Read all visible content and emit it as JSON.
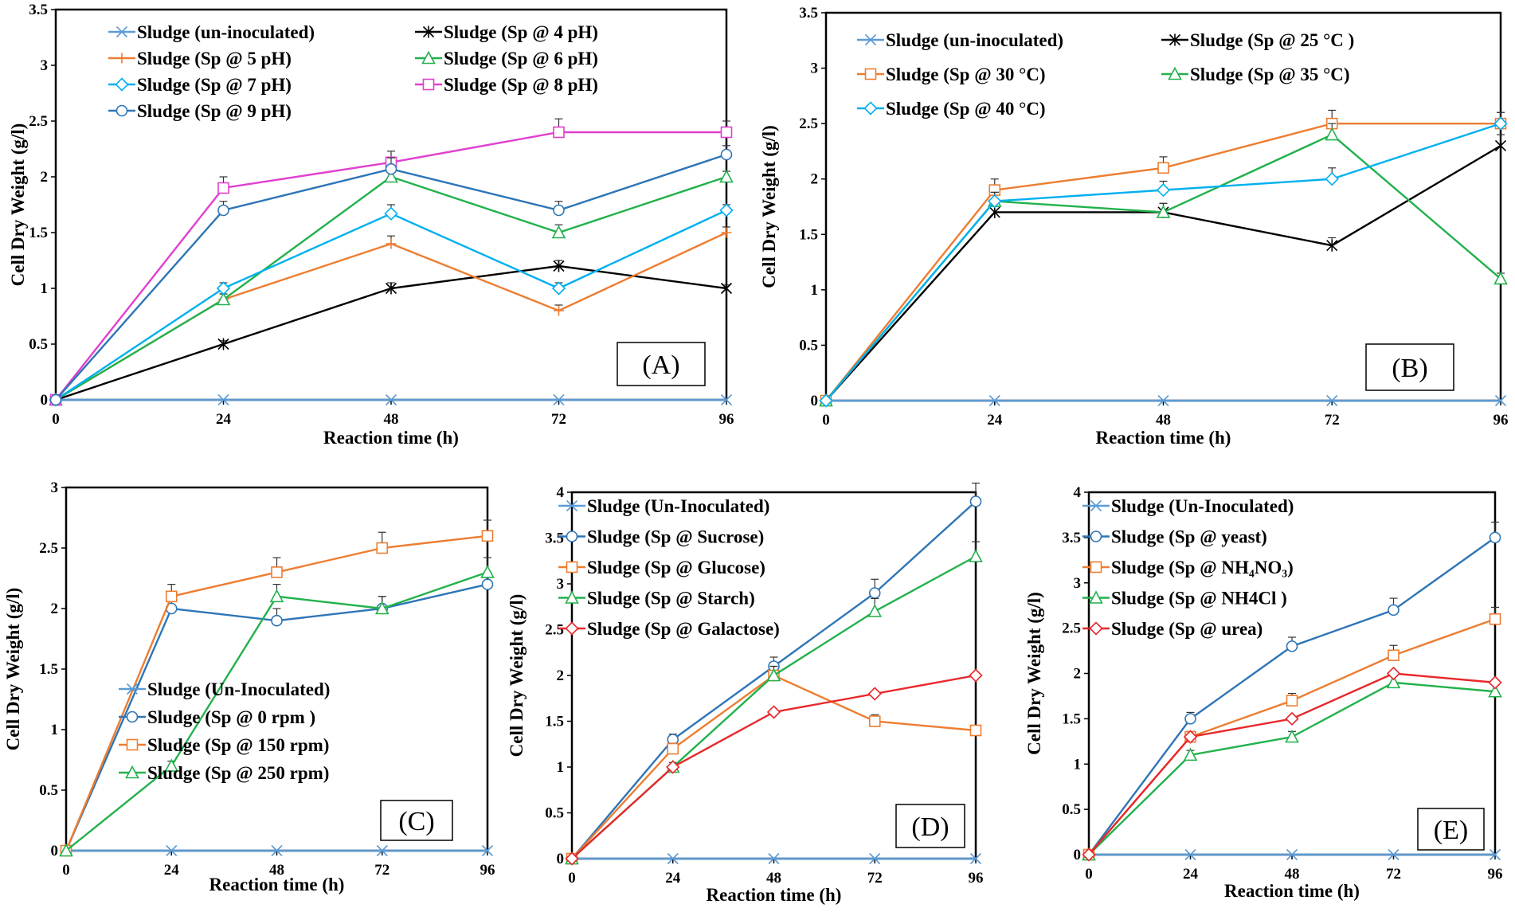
{
  "x_ticks": [
    0,
    24,
    48,
    72,
    96
  ],
  "xlabel": "Reaction time (h)",
  "ylabel": "Cell Dry Weight (g/l)",
  "chart_data": [
    {
      "id": "A",
      "type": "line",
      "panel_label": "(A)",
      "xlabel": "Reaction time (h)",
      "ylabel": "Cell Dry Weight (g/l)",
      "x": [
        0,
        24,
        48,
        72,
        96
      ],
      "xlim": [
        0,
        96
      ],
      "ylim": [
        0,
        3.5
      ],
      "y_ticks": [
        "0",
        "0.5",
        "1",
        "1.5",
        "2",
        "2.5",
        "3",
        "3.5"
      ],
      "series": [
        {
          "name": "Sludge (un-inoculated)",
          "color": "#5b9bd5",
          "marker": "x",
          "values": [
            0,
            0,
            0,
            0,
            0
          ],
          "errors": [
            0,
            0,
            0,
            0,
            0
          ]
        },
        {
          "name": "Sludge (Sp @ 4 pH)",
          "color": "#000000",
          "marker": "star",
          "values": [
            0,
            0.5,
            1.0,
            1.2,
            1.0
          ],
          "errors": [
            0,
            0.03,
            0.05,
            0.05,
            0.03
          ]
        },
        {
          "name": "Sludge (Sp @ 5 pH)",
          "color": "#ed7d31",
          "marker": "plus",
          "values": [
            0,
            0.9,
            1.4,
            0.8,
            1.5
          ],
          "errors": [
            0,
            0.05,
            0.07,
            0.05,
            0.05
          ]
        },
        {
          "name": "Sludge (Sp @ 6 pH)",
          "color": "#22b14c",
          "marker": "triangle",
          "values": [
            0,
            0.9,
            2.0,
            1.5,
            2.0
          ],
          "errors": [
            0,
            0.05,
            0.08,
            0.07,
            0.05
          ]
        },
        {
          "name": "Sludge (Sp @ 7 pH)",
          "color": "#00b0f0",
          "marker": "diamond",
          "values": [
            0,
            1.0,
            1.67,
            1.0,
            1.7
          ],
          "errors": [
            0,
            0.05,
            0.08,
            0.05,
            0.05
          ]
        },
        {
          "name": "Sludge (Sp @ 8 pH)",
          "color": "#e040d0",
          "marker": "square",
          "values": [
            0,
            1.9,
            2.13,
            2.4,
            2.4
          ],
          "errors": [
            0,
            0.1,
            0.1,
            0.12,
            0.1
          ]
        },
        {
          "name": "Sludge (Sp @ 9 pH)",
          "color": "#2e75b6",
          "marker": "circle",
          "values": [
            0,
            1.7,
            2.07,
            1.7,
            2.2
          ],
          "errors": [
            0,
            0.08,
            0.1,
            0.08,
            0.08
          ]
        }
      ]
    },
    {
      "id": "B",
      "type": "line",
      "panel_label": "(B)",
      "xlabel": "Reaction time (h)",
      "ylabel": "Cell Dry Weight (g/l)",
      "x": [
        0,
        24,
        48,
        72,
        96
      ],
      "xlim": [
        0,
        96
      ],
      "ylim": [
        0,
        3.5
      ],
      "y_ticks": [
        "0",
        "0.5",
        "1",
        "1.5",
        "2",
        "2.5",
        "3",
        "3.5"
      ],
      "series": [
        {
          "name": "Sludge (un-inoculated)",
          "color": "#5b9bd5",
          "marker": "x",
          "values": [
            0,
            0,
            0,
            0,
            0
          ],
          "errors": [
            0,
            0,
            0,
            0,
            0
          ]
        },
        {
          "name": "Sludge (Sp @ 25 °C )",
          "color": "#000000",
          "marker": "star",
          "values": [
            0,
            1.7,
            1.7,
            1.4,
            2.3
          ],
          "errors": [
            0,
            0.08,
            0.08,
            0.07,
            0.1
          ]
        },
        {
          "name": "Sludge (Sp @ 30 °C)",
          "color": "#ed7d31",
          "marker": "square",
          "values": [
            0,
            1.9,
            2.1,
            2.5,
            2.5
          ],
          "errors": [
            0,
            0.1,
            0.1,
            0.12,
            0.1
          ]
        },
        {
          "name": "Sludge (Sp @ 35 °C)",
          "color": "#22b14c",
          "marker": "triangle",
          "values": [
            0,
            1.8,
            1.7,
            2.4,
            1.1
          ],
          "errors": [
            0,
            0.08,
            0.08,
            0.1,
            0.05
          ]
        },
        {
          "name": "Sludge (Sp @ 40 °C)",
          "color": "#00b0f0",
          "marker": "diamond",
          "values": [
            0,
            1.8,
            1.9,
            2.0,
            2.5
          ],
          "errors": [
            0,
            0.08,
            0.08,
            0.1,
            0.1
          ]
        }
      ]
    },
    {
      "id": "C",
      "type": "line",
      "panel_label": "(C)",
      "xlabel": "Reaction time (h)",
      "ylabel": "Cell Dry Weight (g/l)",
      "x": [
        0,
        24,
        48,
        72,
        96
      ],
      "xlim": [
        0,
        96
      ],
      "ylim": [
        0,
        3
      ],
      "y_ticks": [
        "0",
        "0.5",
        "1",
        "1.5",
        "2",
        "2.5",
        "3"
      ],
      "series": [
        {
          "name": "Sludge (Un-Inoculated)",
          "color": "#5b9bd5",
          "marker": "x",
          "values": [
            0,
            0,
            0,
            0,
            0
          ],
          "errors": [
            0,
            0,
            0,
            0,
            0
          ]
        },
        {
          "name": "Sludge (Sp @ 0 rpm )",
          "color": "#2e75b6",
          "marker": "circle",
          "values": [
            0,
            2.0,
            1.9,
            2.0,
            2.2
          ],
          "errors": [
            0,
            0.1,
            0.1,
            0.1,
            0.1
          ]
        },
        {
          "name": "Sludge (Sp @ 150 rpm)",
          "color": "#ed7d31",
          "marker": "square",
          "values": [
            0,
            2.1,
            2.3,
            2.5,
            2.6
          ],
          "errors": [
            0,
            0.1,
            0.12,
            0.13,
            0.13
          ]
        },
        {
          "name": "Sludge (Sp @ 250 rpm)",
          "color": "#22b14c",
          "marker": "triangle",
          "values": [
            0,
            0.7,
            2.1,
            2.0,
            2.3
          ],
          "errors": [
            0,
            0.04,
            0.1,
            0.1,
            0.12
          ]
        }
      ]
    },
    {
      "id": "D",
      "type": "line",
      "panel_label": "(D)",
      "xlabel": "Reaction time (h)",
      "ylabel": "Cell Dry Weight (g/l)",
      "x": [
        0,
        24,
        48,
        72,
        96
      ],
      "xlim": [
        0,
        96
      ],
      "ylim": [
        0,
        4
      ],
      "y_ticks": [
        "0",
        "0.5",
        "1",
        "1.5",
        "2",
        "2.5",
        "3",
        "3.5",
        "4"
      ],
      "series": [
        {
          "name": "Sludge (Un-Inoculated)",
          "color": "#5b9bd5",
          "marker": "x",
          "values": [
            0,
            0,
            0,
            0,
            0
          ],
          "errors": [
            0,
            0,
            0,
            0,
            0
          ]
        },
        {
          "name": "Sludge (Sp @ Sucrose)",
          "color": "#2e75b6",
          "marker": "circle",
          "values": [
            0,
            1.3,
            2.1,
            2.9,
            3.9
          ],
          "errors": [
            0,
            0.06,
            0.1,
            0.15,
            0.2
          ]
        },
        {
          "name": "Sludge (Sp @ Glucose)",
          "color": "#ed7d31",
          "marker": "square",
          "values": [
            0,
            1.2,
            2.0,
            1.5,
            1.4
          ],
          "errors": [
            0,
            0.06,
            0.1,
            0.07,
            0.05
          ]
        },
        {
          "name": "Sludge (Sp @ Starch)",
          "color": "#22b14c",
          "marker": "triangle",
          "values": [
            0,
            1.0,
            2.0,
            2.7,
            3.3
          ],
          "errors": [
            0,
            0.05,
            0.1,
            0.14,
            0.16
          ]
        },
        {
          "name": "Sludge (Sp @ Galactose)",
          "color": "#e8282b",
          "marker": "diamond",
          "values": [
            0,
            1.0,
            1.6,
            1.8,
            2.0
          ],
          "errors": [
            0,
            0,
            0,
            0,
            0
          ]
        }
      ]
    },
    {
      "id": "E",
      "type": "line",
      "panel_label": "(E)",
      "xlabel": "Reaction time (h)",
      "ylabel": "Cell Dry Weight (g/l)",
      "x": [
        0,
        24,
        48,
        72,
        96
      ],
      "xlim": [
        0,
        96
      ],
      "ylim": [
        0,
        4
      ],
      "y_ticks": [
        "0",
        "0.5",
        "1",
        "1.5",
        "2",
        "2.5",
        "3",
        "3.5",
        "4"
      ],
      "series": [
        {
          "name": "Sludge (Un-Inoculated)",
          "color": "#5b9bd5",
          "marker": "x",
          "values": [
            0,
            0,
            0,
            0,
            0
          ],
          "errors": [
            0,
            0,
            0,
            0,
            0
          ]
        },
        {
          "name": "Sludge (Sp @ yeast)",
          "color": "#2e75b6",
          "marker": "circle",
          "values": [
            0,
            1.5,
            2.3,
            2.7,
            3.5
          ],
          "errors": [
            0,
            0.07,
            0.1,
            0.13,
            0.17
          ]
        },
        {
          "name": "Sludge (Sp @ NH₄NO₃)",
          "color": "#ed7d31",
          "marker": "square",
          "values": [
            0,
            1.3,
            1.7,
            2.2,
            2.6
          ],
          "errors": [
            0,
            0.06,
            0.08,
            0.11,
            0.13
          ]
        },
        {
          "name": "Sludge (Sp @ NH4Cl )",
          "color": "#22b14c",
          "marker": "triangle",
          "values": [
            0,
            1.1,
            1.3,
            1.9,
            1.8
          ],
          "errors": [
            0,
            0.05,
            0.06,
            0.09,
            0.08
          ]
        },
        {
          "name": "Sludge (Sp @ urea)",
          "color": "#e8282b",
          "marker": "diamond",
          "values": [
            0,
            1.3,
            1.5,
            2.0,
            1.9
          ],
          "errors": [
            0,
            0,
            0,
            0,
            0
          ]
        }
      ]
    }
  ]
}
